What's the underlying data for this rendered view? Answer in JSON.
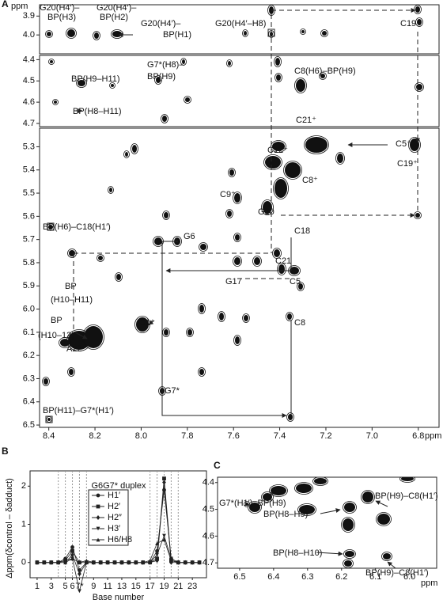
{
  "chart_data": [
    {
      "type": "contour",
      "panel_label": "A",
      "y_label": "ppm",
      "x_label": "ppm",
      "xlim": [
        8.44,
        6.71
      ],
      "xticks": [
        8.4,
        8.2,
        {
          "value": 8,
          "label": "8.0"
        },
        7.8,
        7.6,
        7.4,
        7.2,
        {
          "value": 7,
          "label": "7.0"
        },
        6.8
      ],
      "subpanels": [
        {
          "ylim": [
            3.84,
            4.1
          ],
          "yticks": [
            3.9,
            {
              "value": 4,
              "label": "4.0"
            }
          ]
        },
        {
          "ylim": [
            4.38,
            4.715
          ],
          "yticks": [
            4.4,
            4.5,
            4.6,
            4.7
          ]
        },
        {
          "ylim": [
            5.22,
            6.51
          ],
          "yticks": [
            5.3,
            5.4,
            5.5,
            5.6,
            5.7,
            5.8,
            5.9,
            {
              "value": 6,
              "label": "6.0"
            },
            6.1,
            6.2,
            6.3,
            6.4,
            6.5
          ]
        }
      ],
      "annotations": [
        "G20(H4′)–",
        "BP(H3)",
        "G20(H4′)–",
        "BP(H2)",
        "G20(H4′)–",
        "BP(H1)",
        "G20(H4′–H8)",
        "C19",
        "G7*(H8)–",
        "BP(H9)",
        "C8(H6)–BP(H9)",
        "BP(H9–H11)",
        "BP(H8–H11)",
        "C21⁺",
        "C5⁺",
        "C19⁺",
        "C12⁺",
        "C8⁺",
        "C9⁺",
        "G20",
        "BP(H6)–C18(H1′)",
        "G6",
        "C18",
        "C21",
        "G17",
        "C5",
        "BP",
        "(H10–H11)",
        "BP",
        "(H10–12)",
        "A22",
        "C1⁺",
        "C8",
        "BP(H11)–G7*(H1′)",
        "G7*"
      ]
    },
    {
      "type": "line",
      "panel_label": "B",
      "title": "G6G7* duplex",
      "x_label": "Base number",
      "y_label": "Δppm(δcontrol – δadduct)",
      "xlim": [
        0,
        25
      ],
      "ylim": [
        -0.4,
        2.4
      ],
      "xticks": [
        1,
        3,
        5,
        6,
        {
          "value": 7,
          "label": "7*"
        },
        9,
        11,
        13,
        15,
        17,
        19,
        21,
        23
      ],
      "yticks": [
        0,
        1,
        2
      ],
      "vlines": [
        4,
        5,
        6,
        7,
        8,
        17,
        18,
        19,
        20,
        21
      ],
      "x": [
        1,
        2,
        3,
        4,
        5,
        6,
        7,
        8,
        9,
        10,
        11,
        12,
        13,
        14,
        15,
        16,
        17,
        18,
        19,
        20,
        21,
        22,
        23,
        24
      ],
      "series": [
        {
          "name": "H1′",
          "color": "#222",
          "marker": "circle",
          "values": [
            0,
            0,
            0,
            0,
            0.1,
            0.4,
            -0.2,
            0,
            0,
            0,
            0,
            0,
            0,
            0,
            0,
            0,
            0,
            0.3,
            1.9,
            0.1,
            0,
            0,
            0,
            0
          ]
        },
        {
          "name": "H2′",
          "color": "#222",
          "marker": "square",
          "values": [
            0,
            0,
            0,
            0,
            0.05,
            0.3,
            0,
            0,
            0,
            0,
            0,
            0,
            0,
            0,
            0,
            0,
            0,
            0.1,
            2.2,
            0.05,
            0,
            0,
            0,
            0
          ]
        },
        {
          "name": "H2″",
          "color": "#222",
          "marker": "diamond",
          "values": [
            0,
            0,
            0,
            0,
            0,
            0.2,
            -0.3,
            0,
            0,
            0,
            0,
            0,
            0,
            0,
            0,
            0,
            0,
            0.05,
            2.1,
            0,
            0,
            0,
            0,
            0
          ]
        },
        {
          "name": "H3′",
          "color": "#222",
          "marker": "tri-down",
          "values": [
            0,
            0,
            0,
            0,
            0.05,
            0.1,
            -0.75,
            0,
            0,
            0,
            0,
            0,
            0,
            0,
            0,
            0,
            0,
            0.2,
            0.7,
            0.1,
            0,
            0,
            0,
            0
          ]
        },
        {
          "name": "H6/H8",
          "color": "#222",
          "marker": "tri-up",
          "values": [
            0,
            0,
            0,
            0,
            0,
            0.1,
            0,
            0.05,
            0,
            0,
            0,
            0,
            0,
            0,
            0,
            0,
            0.05,
            0.5,
            0.6,
            0.05,
            0,
            0,
            0,
            0
          ]
        }
      ]
    },
    {
      "type": "contour",
      "panel_label": "C",
      "x_label": "ppm",
      "xlim": [
        6.565,
        5.92
      ],
      "xticks": [
        6.5,
        6.4,
        6.3,
        6.2,
        6.1,
        {
          "value": 6,
          "label": "6.0"
        }
      ],
      "ylim": [
        4.38,
        4.72
      ],
      "yticks": [
        4.4,
        4.5,
        4.6,
        4.7
      ],
      "annotations": [
        "G7*(H1′)–BP(H9)",
        "BP(H8–H9)",
        "BP(H9)–C8(H1′)",
        "BP(H8–H10)",
        "BP(H9)–C8(H1′)"
      ]
    }
  ]
}
